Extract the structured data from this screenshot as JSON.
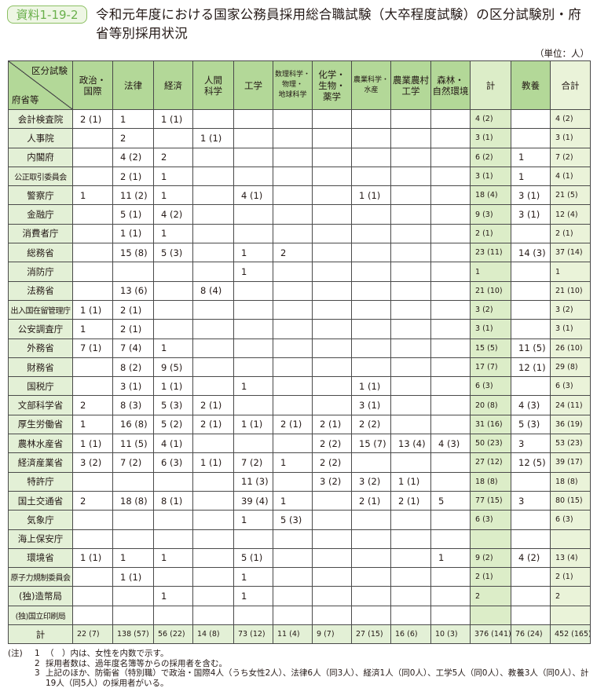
{
  "header": {
    "badge": "資料1-19-2",
    "title": "令和元年度における国家公務員採用総合職試験（大卒程度試験）の区分試験別・府省等別採用状況",
    "unit": "（単位：人）"
  },
  "colors": {
    "header_bg": "#b3d898",
    "name_col_bg": "#e3f0d6",
    "kei_col_bg": "#dcedc8",
    "gokei_col_bg": "#eaf3d9",
    "badge_green": "#6ab04c"
  },
  "table": {
    "corner_top": "区分試験",
    "corner_bottom": "府省等",
    "columns": [
      "政治・\n国際",
      "法律",
      "経済",
      "人間\n科学",
      "工学",
      "数理科学・\n物理・\n地球科学",
      "化学・\n生物・\n薬学",
      "農業科学・\n水産",
      "農業農村\n工学",
      "森林・\n自然環境",
      "計",
      "教養",
      "合計"
    ],
    "rows": [
      {
        "name": "会計検査院",
        "cells": [
          "2 (1)",
          "1",
          "1 (1)",
          "",
          "",
          "",
          "",
          "",
          "",
          "",
          "4 (2)",
          "",
          "4 (2)"
        ]
      },
      {
        "name": "人事院",
        "cells": [
          "",
          "2",
          "",
          "1 (1)",
          "",
          "",
          "",
          "",
          "",
          "",
          "3 (1)",
          "",
          "3 (1)"
        ]
      },
      {
        "name": "内閣府",
        "cells": [
          "",
          "4 (2)",
          "2",
          "",
          "",
          "",
          "",
          "",
          "",
          "",
          "6 (2)",
          "1",
          "7 (2)"
        ]
      },
      {
        "name": "公正取引委員会",
        "cells": [
          "",
          "2 (1)",
          "1",
          "",
          "",
          "",
          "",
          "",
          "",
          "",
          "3 (1)",
          "1",
          "4 (1)"
        ]
      },
      {
        "name": "警察庁",
        "cells": [
          "1",
          "11 (2)",
          "1",
          "",
          "4 (1)",
          "",
          "",
          "1 (1)",
          "",
          "",
          "18 (4)",
          "3 (1)",
          "21 (5)"
        ]
      },
      {
        "name": "金融庁",
        "cells": [
          "",
          "5 (1)",
          "4 (2)",
          "",
          "",
          "",
          "",
          "",
          "",
          "",
          "9 (3)",
          "3 (1)",
          "12 (4)"
        ]
      },
      {
        "name": "消費者庁",
        "cells": [
          "",
          "1 (1)",
          "1",
          "",
          "",
          "",
          "",
          "",
          "",
          "",
          "2 (1)",
          "",
          "2 (1)"
        ]
      },
      {
        "name": "総務省",
        "cells": [
          "",
          "15 (8)",
          "5 (3)",
          "",
          "1",
          "2",
          "",
          "",
          "",
          "",
          "23 (11)",
          "14 (3)",
          "37 (14)"
        ]
      },
      {
        "name": "消防庁",
        "cells": [
          "",
          "",
          "",
          "",
          "1",
          "",
          "",
          "",
          "",
          "",
          "1",
          "",
          "1"
        ]
      },
      {
        "name": "法務省",
        "cells": [
          "",
          "13 (6)",
          "",
          "8 (4)",
          "",
          "",
          "",
          "",
          "",
          "",
          "21 (10)",
          "",
          "21 (10)"
        ]
      },
      {
        "name": "出入国在留管理庁",
        "cells": [
          "1 (1)",
          "2 (1)",
          "",
          "",
          "",
          "",
          "",
          "",
          "",
          "",
          "3 (2)",
          "",
          "3 (2)"
        ]
      },
      {
        "name": "公安調査庁",
        "cells": [
          "1",
          "2 (1)",
          "",
          "",
          "",
          "",
          "",
          "",
          "",
          "",
          "3 (1)",
          "",
          "3 (1)"
        ]
      },
      {
        "name": "外務省",
        "cells": [
          "7 (1)",
          "7 (4)",
          "1",
          "",
          "",
          "",
          "",
          "",
          "",
          "",
          "15 (5)",
          "11 (5)",
          "26 (10)"
        ]
      },
      {
        "name": "財務省",
        "cells": [
          "",
          "8 (2)",
          "9 (5)",
          "",
          "",
          "",
          "",
          "",
          "",
          "",
          "17 (7)",
          "12 (1)",
          "29 (8)"
        ]
      },
      {
        "name": "国税庁",
        "cells": [
          "",
          "3 (1)",
          "1 (1)",
          "",
          "1",
          "",
          "",
          "1 (1)",
          "",
          "",
          "6 (3)",
          "",
          "6 (3)"
        ]
      },
      {
        "name": "文部科学省",
        "cells": [
          "2",
          "8 (3)",
          "5 (3)",
          "2 (1)",
          "",
          "",
          "",
          "3 (1)",
          "",
          "",
          "20 (8)",
          "4 (3)",
          "24 (11)"
        ]
      },
      {
        "name": "厚生労働省",
        "cells": [
          "1",
          "16 (8)",
          "5 (2)",
          "2 (1)",
          "1 (1)",
          "2 (1)",
          "2 (1)",
          "2 (2)",
          "",
          "",
          "31 (16)",
          "5 (3)",
          "36 (19)"
        ]
      },
      {
        "name": "農林水産省",
        "cells": [
          "1 (1)",
          "11 (5)",
          "4 (1)",
          "",
          "",
          "",
          "2 (2)",
          "15 (7)",
          "13 (4)",
          "4 (3)",
          "50 (23)",
          "3",
          "53 (23)"
        ]
      },
      {
        "name": "経済産業省",
        "cells": [
          "3 (2)",
          "7 (2)",
          "6 (3)",
          "1 (1)",
          "7 (2)",
          "1",
          "2 (2)",
          "",
          "",
          "",
          "27 (12)",
          "12 (5)",
          "39 (17)"
        ]
      },
      {
        "name": "特許庁",
        "cells": [
          "",
          "",
          "",
          "",
          "11 (3)",
          "",
          "3 (2)",
          "3 (2)",
          "1 (1)",
          "",
          "18 (8)",
          "",
          "18 (8)"
        ]
      },
      {
        "name": "国土交通省",
        "cells": [
          "2",
          "18 (8)",
          "8 (1)",
          "",
          "39 (4)",
          "1",
          "",
          "2 (1)",
          "2 (1)",
          "5",
          "77 (15)",
          "3",
          "80 (15)"
        ]
      },
      {
        "name": "気象庁",
        "cells": [
          "",
          "",
          "",
          "",
          "1",
          "5 (3)",
          "",
          "",
          "",
          "",
          "6 (3)",
          "",
          "6 (3)"
        ]
      },
      {
        "name": "海上保安庁",
        "cells": [
          "",
          "",
          "",
          "",
          "",
          "",
          "",
          "",
          "",
          "",
          "",
          "",
          ""
        ]
      },
      {
        "name": "環境省",
        "cells": [
          "1 (1)",
          "1",
          "1",
          "",
          "5 (1)",
          "",
          "",
          "",
          "",
          "1",
          "9 (2)",
          "4 (2)",
          "13 (4)"
        ]
      },
      {
        "name": "原子力規制委員会",
        "cells": [
          "",
          "1 (1)",
          "",
          "",
          "1",
          "",
          "",
          "",
          "",
          "",
          "2 (1)",
          "",
          "2 (1)"
        ]
      },
      {
        "name": "(独)造幣局",
        "cells": [
          "",
          "",
          "1",
          "",
          "1",
          "",
          "",
          "",
          "",
          "",
          "2",
          "",
          "2"
        ]
      },
      {
        "name": "(独)国立印刷局",
        "cells": [
          "",
          "",
          "",
          "",
          "",
          "",
          "",
          "",
          "",
          "",
          "",
          "",
          ""
        ]
      }
    ],
    "total_row": {
      "name": "計",
      "cells": [
        "22 (7)",
        "138 (57)",
        "56 (22)",
        "14 (8)",
        "73 (12)",
        "11 (4)",
        "9 (7)",
        "27 (15)",
        "16 (6)",
        "10 (3)",
        "376 (141)",
        "76 (24)",
        "452 (165)"
      ]
    }
  },
  "notes": {
    "label": "(注)",
    "items": [
      {
        "num": "1",
        "text": "（　）内は、女性を内数で示す。"
      },
      {
        "num": "2",
        "text": "採用者数は、過年度名簿等からの採用者を含む。"
      },
      {
        "num": "3",
        "text": "上記のほか、防衛省（特別職）で政治・国際4人（うち女性2人）、法律6人（同3人）、経済1人（同0人）、工学5人（同0人）、教養3人（同0人）、計19人（同5人）の採用者がいる。"
      }
    ]
  }
}
